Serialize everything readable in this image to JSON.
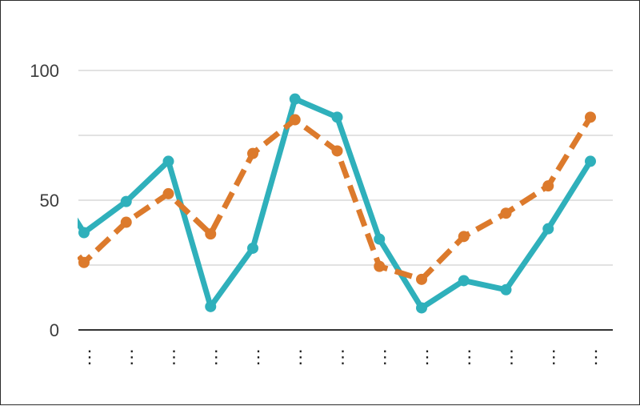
{
  "chart_data": {
    "type": "line",
    "title": "",
    "xlabel": "",
    "ylabel": "",
    "ylim": [
      0,
      100
    ],
    "yticks": [
      0,
      50,
      100
    ],
    "grid": true,
    "legend": "none",
    "categories": [
      "⋮",
      "⋮",
      "⋮",
      "⋮",
      "⋮",
      "⋮",
      "⋮",
      "⋮",
      "⋮",
      "⋮",
      "⋮",
      "⋮",
      "⋮"
    ],
    "series": [
      {
        "color": "#2fb0bb",
        "style": "solid",
        "values": [
          37.5,
          49.5,
          65,
          9,
          31.5,
          89,
          82,
          35,
          8.5,
          19,
          15.5,
          39,
          65
        ]
      },
      {
        "color": "#dc7a2c",
        "style": "dashed",
        "values": [
          26,
          41.5,
          52.5,
          37,
          68,
          81,
          69,
          24.5,
          19.5,
          36,
          45,
          55.5,
          82
        ]
      }
    ],
    "leading_partial": [
      {
        "series": 0,
        "value": 44.5
      },
      {
        "series": 1,
        "value": 30
      }
    ]
  }
}
